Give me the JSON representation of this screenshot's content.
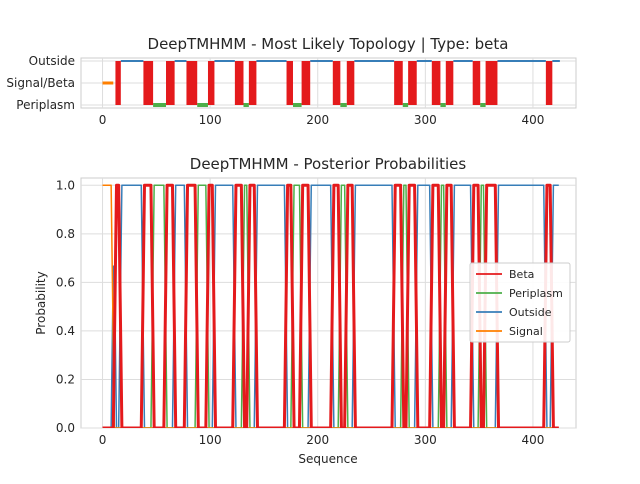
{
  "chart_data": [
    {
      "type": "bar",
      "title": "DeepTMHMM - Most Likely Topology | Type: beta",
      "xlim": [
        -20,
        440
      ],
      "x_ticks": [
        0,
        100,
        200,
        300,
        400
      ],
      "y_categories": [
        "Outside",
        "Signal/Beta",
        "Periplasm"
      ],
      "signal_segment": [
        0,
        10
      ],
      "beta_segments": [
        [
          12,
          17
        ],
        [
          38,
          47
        ],
        [
          59,
          67
        ],
        [
          78,
          88
        ],
        [
          98,
          104
        ],
        [
          123,
          131
        ],
        [
          136,
          143
        ],
        [
          171,
          177
        ],
        [
          185,
          193
        ],
        [
          214,
          221
        ],
        [
          227,
          234
        ],
        [
          271,
          279
        ],
        [
          284,
          292
        ],
        [
          306,
          314
        ],
        [
          319,
          326
        ],
        [
          344,
          351
        ],
        [
          356,
          367
        ],
        [
          412,
          418
        ]
      ],
      "periplasm_segments": [
        [
          47,
          59
        ],
        [
          88,
          98
        ],
        [
          131,
          136
        ],
        [
          177,
          185
        ],
        [
          221,
          227
        ],
        [
          279,
          284
        ],
        [
          314,
          319
        ],
        [
          351,
          356
        ]
      ],
      "outside_segments": [
        [
          17,
          38
        ],
        [
          67,
          78
        ],
        [
          104,
          123
        ],
        [
          143,
          171
        ],
        [
          193,
          214
        ],
        [
          234,
          271
        ],
        [
          292,
          306
        ],
        [
          326,
          344
        ],
        [
          367,
          412
        ],
        [
          418,
          425
        ]
      ],
      "colors": {
        "beta": "#e41a1c",
        "periplasm": "#4daf4a",
        "outside": "#377eb8",
        "signal": "#ff7f00"
      }
    },
    {
      "type": "line",
      "title": "DeepTMHMM - Posterior Probabilities",
      "xlabel": "Sequence",
      "ylabel": "Probability",
      "xlim": [
        -20,
        440
      ],
      "ylim": [
        0,
        1.03
      ],
      "x_ticks": [
        0,
        100,
        200,
        300,
        400
      ],
      "y_ticks": [
        "0.0",
        "0.2",
        "0.4",
        "0.6",
        "0.8",
        "1.0"
      ],
      "legend_position": "center-right",
      "series": [
        {
          "name": "Beta",
          "color": "#e41a1c"
        },
        {
          "name": "Periplasm",
          "color": "#4daf4a"
        },
        {
          "name": "Outside",
          "color": "#377eb8"
        },
        {
          "name": "Signal",
          "color": "#ff7f00"
        }
      ]
    }
  ]
}
